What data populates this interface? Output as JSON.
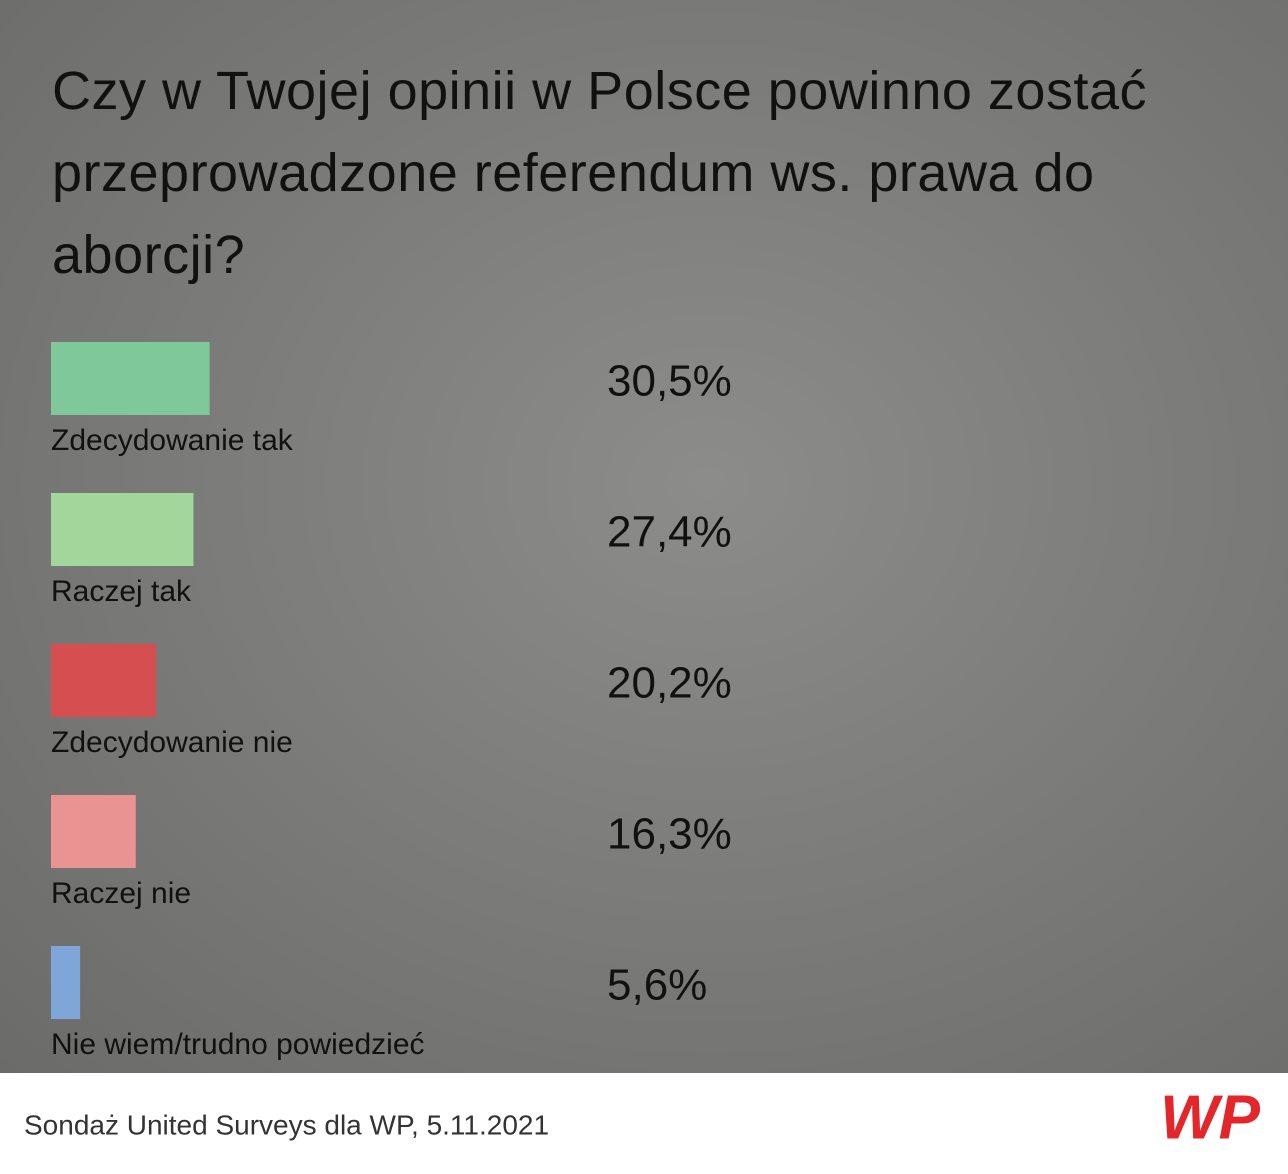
{
  "chart_data": {
    "type": "bar",
    "title": "Czy w Twojej opinii w Polsce powinno zostać przeprowadzone referendum ws. prawa do aborcji?",
    "categories": [
      "Zdecydowanie tak",
      "Raczej tak",
      "Zdecydowanie nie",
      "Raczej nie",
      "Nie wiem/trudno powiedzieć"
    ],
    "values": [
      30.5,
      27.4,
      20.2,
      16.3,
      5.6
    ],
    "value_labels": [
      "30,5%",
      "27,4%",
      "20,2%",
      "16,3%",
      "5,6%"
    ],
    "colors": [
      "#7ec89a",
      "#a2d69a",
      "#d64f50",
      "#e99393",
      "#7ea6d8"
    ],
    "source": "Sondaż United Surveys dla WP, 5.11.2021",
    "logo": "WP"
  }
}
